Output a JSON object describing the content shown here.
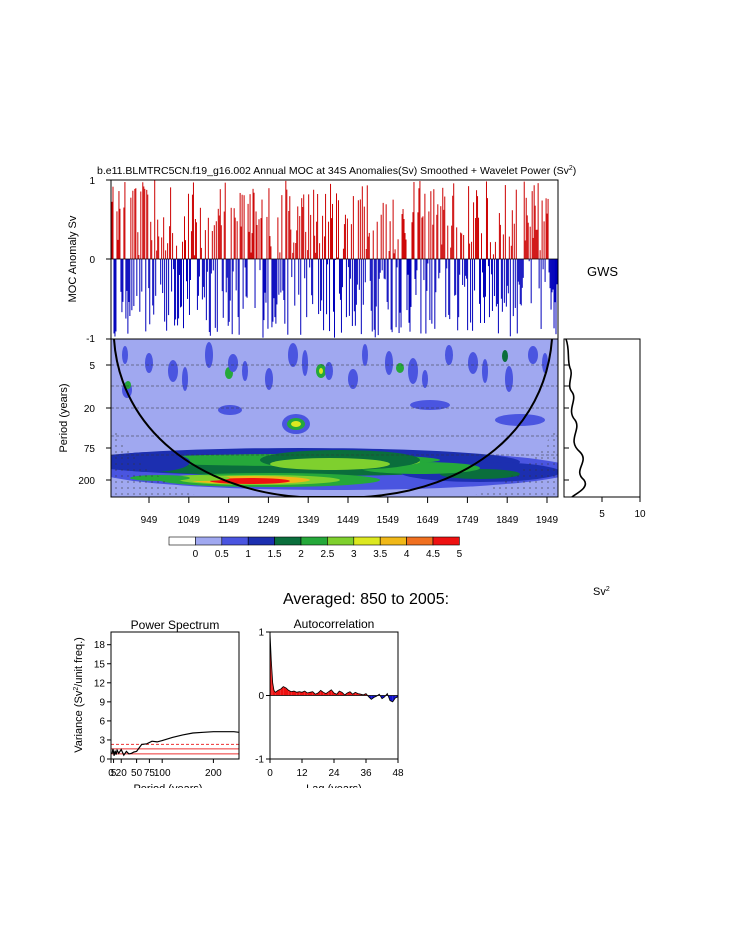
{
  "title": "b.e11.BLMTRC5CN.f19_g16.002 Annual MOC at 34S Anomalies(Sv) Smoothed + Wavelet Power (Sv",
  "title_sup": "2",
  "title_end": ")",
  "anomaly_panel": {
    "ylabel": "MOC Anomaly Sv",
    "yticks": [
      "1",
      "0",
      "-1"
    ],
    "pos_color": "#cc0000",
    "neg_color": "#0000bb"
  },
  "wavelet_panel": {
    "ylabel": "Period (years)",
    "yticks": [
      "5",
      "20",
      "75",
      "200"
    ],
    "xticks": [
      "949",
      "1049",
      "1149",
      "1249",
      "1349",
      "1449",
      "1549",
      "1649",
      "1749",
      "1849",
      "1949"
    ]
  },
  "gws_panel": {
    "label": "GWS",
    "xticks": [
      "5",
      "10"
    ]
  },
  "colorbar": {
    "labels": [
      "0",
      "0.5",
      "1",
      "1.5",
      "2",
      "2.5",
      "3",
      "3.5",
      "4",
      "4.5",
      "5"
    ],
    "colors": [
      "#ffffff",
      "#a0a8f0",
      "#4a55e0",
      "#1c2fb0",
      "#0a6e3c",
      "#25a83a",
      "#7fd02e",
      "#dce820",
      "#f0b818",
      "#f07020",
      "#ee1111"
    ],
    "units": "Sv",
    "units_sup": "2"
  },
  "averaged_title": "Averaged: 850 to 2005:",
  "chart_data": [
    {
      "type": "line",
      "name": "power_spectrum",
      "title": "Power Spectrum",
      "xlabel": "Period (years)",
      "ylabel": "Variance (Sv",
      "ylabel_sup": "2",
      "ylabel_end": "/unit freq.)",
      "xlim": [
        0,
        250
      ],
      "ylim": [
        0,
        20
      ],
      "xticks": [
        "0",
        "5",
        "20",
        "50",
        "75",
        "100",
        "200"
      ],
      "yticks": [
        "0",
        "3",
        "6",
        "9",
        "12",
        "15",
        "18"
      ],
      "x": [
        2,
        4,
        6,
        8,
        10,
        12,
        15,
        20,
        25,
        30,
        35,
        40,
        45,
        50,
        60,
        70,
        80,
        90,
        100,
        120,
        140,
        160,
        180,
        200,
        220,
        240,
        250
      ],
      "y": [
        0.8,
        1.6,
        0.5,
        1.3,
        0.7,
        1.4,
        0.9,
        1.5,
        0.6,
        1.2,
        0.8,
        0.9,
        1.1,
        1.2,
        2.3,
        2.4,
        2.8,
        2.7,
        2.9,
        3.4,
        3.8,
        4.1,
        4.2,
        4.3,
        4.3,
        4.3,
        4.2
      ],
      "significance_levels": [
        2.3,
        1.6,
        0.8
      ]
    },
    {
      "type": "area",
      "name": "autocorrelation",
      "title": "Autocorrelation",
      "xlabel": "Lag (years)",
      "xlim": [
        0,
        48
      ],
      "ylim": [
        -1,
        1
      ],
      "xticks": [
        "0",
        "12",
        "24",
        "36",
        "48"
      ],
      "yticks": [
        "1",
        "0",
        "-1"
      ],
      "x": [
        0,
        0.5,
        1,
        1.5,
        2,
        3,
        4,
        5,
        6,
        7,
        8,
        9,
        10,
        11,
        12,
        13,
        14,
        15,
        16,
        17,
        18,
        19,
        20,
        21,
        22,
        23,
        24,
        25,
        26,
        27,
        28,
        29,
        30,
        31,
        32,
        33,
        34,
        35,
        36,
        37,
        38,
        39,
        40,
        41,
        42,
        43,
        44,
        45,
        46,
        47,
        48
      ],
      "y": [
        1.0,
        0.55,
        0.2,
        0.08,
        0.05,
        0.08,
        0.1,
        0.14,
        0.12,
        0.08,
        0.06,
        0.07,
        0.05,
        0.06,
        0.05,
        0.07,
        0.04,
        0.05,
        0.06,
        0.02,
        0.04,
        0.08,
        0.05,
        0.03,
        0.06,
        0.09,
        0.04,
        0.02,
        0.07,
        0.05,
        0.01,
        0.04,
        0.06,
        0.02,
        0.05,
        0.03,
        0.02,
        0.01,
        0.03,
        -0.02,
        -0.06,
        -0.03,
        -0.01,
        0.02,
        -0.05,
        -0.02,
        0.03,
        -0.08,
        -0.1,
        -0.04,
        -0.02
      ],
      "pos_color": "#ee1111",
      "neg_color": "#1010cc"
    }
  ]
}
